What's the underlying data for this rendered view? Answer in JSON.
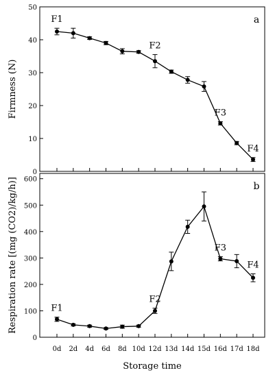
{
  "chart_data": {
    "type": "line",
    "x": [
      "0d",
      "2d",
      "4d",
      "6d",
      "8d",
      "10d",
      "12d",
      "13d",
      "14d",
      "15d",
      "16d",
      "17d",
      "18d"
    ],
    "xlabel": "Storage time",
    "panels": [
      {
        "label": "a",
        "ylabel": "Firmness (N)",
        "ylim": [
          0,
          50
        ],
        "yticks": [
          0,
          10,
          20,
          30,
          40,
          50
        ],
        "values": [
          42.5,
          42.0,
          40.5,
          39.0,
          36.5,
          36.3,
          33.5,
          30.3,
          27.8,
          25.8,
          14.6,
          8.6,
          3.6
        ],
        "errors": [
          1.0,
          1.5,
          0.4,
          0.5,
          0.8,
          0.4,
          2.0,
          0.5,
          1.0,
          1.5,
          0.5,
          0.5,
          0.6
        ],
        "annotations": [
          {
            "text": "F1",
            "x": "0d",
            "value": 42.5
          },
          {
            "text": "F2",
            "x": "12d",
            "value": 33.5
          },
          {
            "text": "F3",
            "x": "16d",
            "value": 14.6
          },
          {
            "text": "F4",
            "x": "18d",
            "value": 3.6
          }
        ]
      },
      {
        "label": "b",
        "ylabel": "Respiration rate [(mg (CO2)/kg/h)]",
        "ylim": [
          0,
          620
        ],
        "yticks": [
          0,
          100,
          200,
          300,
          400,
          500,
          600
        ],
        "values": [
          68,
          47,
          42,
          33,
          40,
          42,
          100,
          287,
          418,
          495,
          297,
          288,
          225
        ],
        "errors": [
          8,
          4,
          4,
          3,
          6,
          4,
          10,
          35,
          25,
          55,
          8,
          25,
          15
        ],
        "annotations": [
          {
            "text": "F1",
            "x": "0d",
            "value": 68
          },
          {
            "text": "F2",
            "x": "12d",
            "value": 100
          },
          {
            "text": "F3",
            "x": "16d",
            "value": 297
          },
          {
            "text": "F4",
            "x": "18d",
            "value": 225
          }
        ]
      }
    ]
  }
}
